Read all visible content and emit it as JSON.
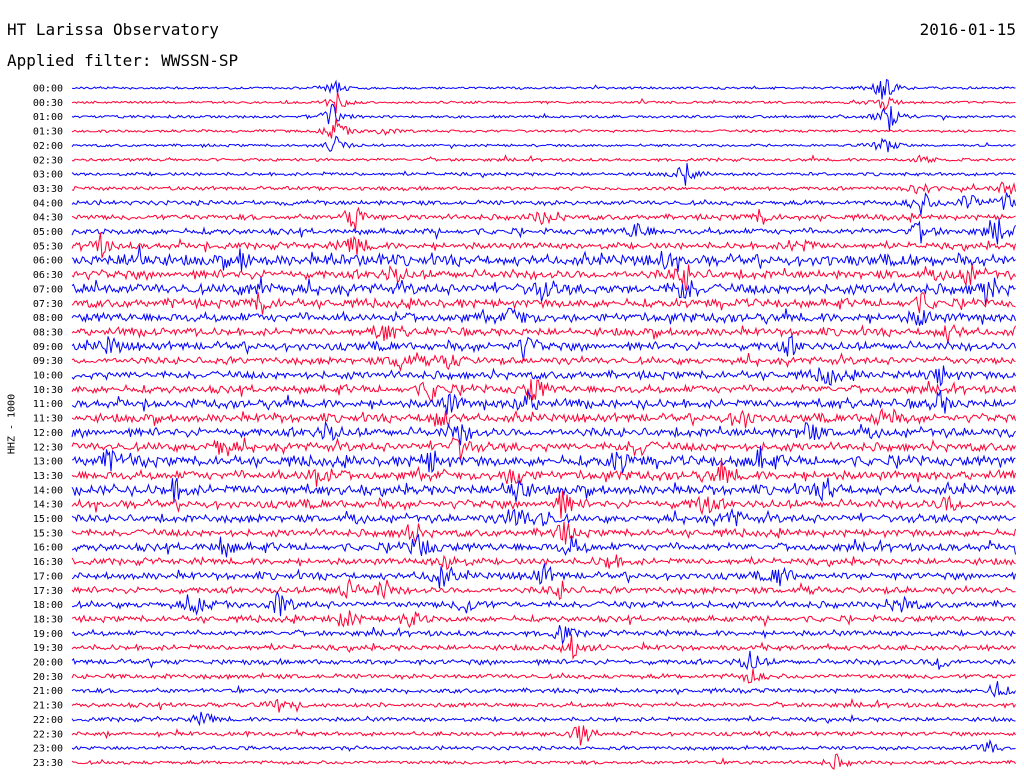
{
  "header": {
    "title": "HT Larissa Observatory",
    "date": "2016-01-15",
    "filter_label": "Applied filter: WWSSN-SP"
  },
  "chart_data": {
    "type": "line",
    "title": "HT Larissa Observatory",
    "subtitle": "Applied filter: WWSSN-SP",
    "ylabel": "HHZ - 1000",
    "xlabel": "",
    "grid": false,
    "colors": [
      "#0000ff",
      "#ff0033"
    ],
    "rows": [
      {
        "label": "00:00",
        "activity": 0.1,
        "events": [
          [
            0.28,
            0.6
          ],
          [
            0.86,
            1.0
          ]
        ]
      },
      {
        "label": "00:30",
        "activity": 0.1,
        "events": [
          [
            0.28,
            0.7
          ],
          [
            0.86,
            0.6
          ]
        ]
      },
      {
        "label": "01:00",
        "activity": 0.12,
        "events": [
          [
            0.275,
            1.0
          ],
          [
            0.865,
            1.0
          ]
        ]
      },
      {
        "label": "01:30",
        "activity": 0.12,
        "events": [
          [
            0.28,
            0.8
          ],
          [
            0.33,
            0.3
          ]
        ]
      },
      {
        "label": "02:00",
        "activity": 0.12,
        "events": [
          [
            0.28,
            0.7
          ],
          [
            0.86,
            0.7
          ]
        ]
      },
      {
        "label": "02:30",
        "activity": 0.15,
        "events": [
          [
            0.9,
            0.3
          ]
        ]
      },
      {
        "label": "03:00",
        "activity": 0.18,
        "events": [
          [
            0.65,
            0.8
          ]
        ]
      },
      {
        "label": "03:30",
        "activity": 0.22,
        "events": [
          [
            0.9,
            0.5
          ],
          [
            0.99,
            0.6
          ]
        ]
      },
      {
        "label": "04:00",
        "activity": 0.3,
        "events": [
          [
            0.9,
            0.9
          ],
          [
            0.95,
            0.8
          ],
          [
            0.99,
            0.7
          ]
        ]
      },
      {
        "label": "04:30",
        "activity": 0.35,
        "events": [
          [
            0.3,
            0.8
          ],
          [
            0.5,
            0.6
          ],
          [
            0.73,
            0.5
          ]
        ]
      },
      {
        "label": "05:00",
        "activity": 0.4,
        "events": [
          [
            0.6,
            0.7
          ],
          [
            0.9,
            0.8
          ],
          [
            0.98,
            0.8
          ]
        ]
      },
      {
        "label": "05:30",
        "activity": 0.45,
        "events": [
          [
            0.03,
            0.7
          ],
          [
            0.3,
            0.8
          ],
          [
            0.77,
            0.7
          ]
        ]
      },
      {
        "label": "06:00",
        "activity": 0.8,
        "events": [
          [
            0.07,
            0.8
          ],
          [
            0.18,
            0.6
          ],
          [
            0.63,
            0.5
          ]
        ]
      },
      {
        "label": "06:30",
        "activity": 0.65,
        "events": [
          [
            0.34,
            0.6
          ],
          [
            0.65,
            0.8
          ],
          [
            0.95,
            0.7
          ]
        ]
      },
      {
        "label": "07:00",
        "activity": 0.75,
        "events": [
          [
            0.2,
            0.7
          ],
          [
            0.5,
            0.7
          ],
          [
            0.65,
            0.9
          ],
          [
            0.97,
            0.8
          ]
        ]
      },
      {
        "label": "07:30",
        "activity": 0.6,
        "events": [
          [
            0.2,
            0.7
          ],
          [
            0.9,
            0.6
          ]
        ]
      },
      {
        "label": "08:00",
        "activity": 0.65,
        "events": [
          [
            0.47,
            0.7
          ],
          [
            0.9,
            0.6
          ]
        ]
      },
      {
        "label": "08:30",
        "activity": 0.55,
        "events": [
          [
            0.33,
            0.6
          ],
          [
            0.93,
            0.6
          ]
        ]
      },
      {
        "label": "09:00",
        "activity": 0.6,
        "events": [
          [
            0.04,
            0.6
          ],
          [
            0.48,
            0.8
          ],
          [
            0.76,
            0.6
          ]
        ]
      },
      {
        "label": "09:30",
        "activity": 0.5,
        "events": [
          [
            0.35,
            0.7
          ],
          [
            0.4,
            0.6
          ]
        ]
      },
      {
        "label": "10:00",
        "activity": 0.55,
        "events": [
          [
            0.8,
            0.7
          ],
          [
            0.92,
            0.6
          ]
        ]
      },
      {
        "label": "10:30",
        "activity": 0.55,
        "events": [
          [
            0.38,
            0.7
          ],
          [
            0.49,
            0.9
          ]
        ]
      },
      {
        "label": "11:00",
        "activity": 0.6,
        "events": [
          [
            0.4,
            0.7
          ],
          [
            0.48,
            0.8
          ],
          [
            0.92,
            0.7
          ]
        ]
      },
      {
        "label": "11:30",
        "activity": 0.6,
        "events": [
          [
            0.39,
            0.8
          ],
          [
            0.71,
            0.8
          ],
          [
            0.86,
            0.7
          ]
        ]
      },
      {
        "label": "12:00",
        "activity": 0.65,
        "events": [
          [
            0.27,
            0.7
          ],
          [
            0.41,
            0.8
          ],
          [
            0.78,
            0.7
          ]
        ]
      },
      {
        "label": "12:30",
        "activity": 0.6,
        "events": [
          [
            0.16,
            0.7
          ],
          [
            0.41,
            0.8
          ],
          [
            0.6,
            0.7
          ]
        ]
      },
      {
        "label": "13:00",
        "activity": 0.75,
        "events": [
          [
            0.04,
            0.6
          ],
          [
            0.38,
            0.7
          ],
          [
            0.58,
            0.7
          ],
          [
            0.73,
            0.7
          ]
        ]
      },
      {
        "label": "13:30",
        "activity": 0.65,
        "events": [
          [
            0.26,
            0.7
          ],
          [
            0.47,
            0.9
          ],
          [
            0.69,
            0.7
          ]
        ]
      },
      {
        "label": "14:00",
        "activity": 0.7,
        "events": [
          [
            0.11,
            0.7
          ],
          [
            0.47,
            1.0
          ],
          [
            0.8,
            0.7
          ]
        ]
      },
      {
        "label": "14:30",
        "activity": 0.6,
        "events": [
          [
            0.52,
            0.9
          ],
          [
            0.67,
            0.8
          ],
          [
            0.93,
            0.6
          ]
        ]
      },
      {
        "label": "15:00",
        "activity": 0.55,
        "events": [
          [
            0.47,
            0.9
          ],
          [
            0.5,
            0.7
          ],
          [
            0.7,
            0.6
          ]
        ]
      },
      {
        "label": "15:30",
        "activity": 0.5,
        "events": [
          [
            0.36,
            0.7
          ],
          [
            0.52,
            0.8
          ]
        ]
      },
      {
        "label": "16:00",
        "activity": 0.55,
        "events": [
          [
            0.16,
            0.7
          ],
          [
            0.37,
            0.9
          ],
          [
            0.53,
            0.7
          ]
        ]
      },
      {
        "label": "16:30",
        "activity": 0.45,
        "events": [
          [
            0.4,
            0.7
          ],
          [
            0.57,
            0.6
          ]
        ]
      },
      {
        "label": "17:00",
        "activity": 0.5,
        "events": [
          [
            0.39,
            0.8
          ],
          [
            0.5,
            0.7
          ],
          [
            0.75,
            0.8
          ]
        ]
      },
      {
        "label": "17:30",
        "activity": 0.45,
        "events": [
          [
            0.29,
            0.8
          ],
          [
            0.33,
            0.7
          ],
          [
            0.52,
            0.6
          ]
        ]
      },
      {
        "label": "18:00",
        "activity": 0.45,
        "events": [
          [
            0.13,
            0.6
          ],
          [
            0.22,
            0.8
          ],
          [
            0.42,
            0.7
          ],
          [
            0.88,
            0.6
          ]
        ]
      },
      {
        "label": "18:30",
        "activity": 0.4,
        "events": [
          [
            0.29,
            0.7
          ],
          [
            0.36,
            0.6
          ]
        ]
      },
      {
        "label": "19:00",
        "activity": 0.35,
        "events": [
          [
            0.52,
            0.6
          ]
        ]
      },
      {
        "label": "19:30",
        "activity": 0.35,
        "events": [
          [
            0.53,
            0.8
          ]
        ]
      },
      {
        "label": "20:00",
        "activity": 0.35,
        "events": [
          [
            0.72,
            0.8
          ],
          [
            0.92,
            0.5
          ]
        ]
      },
      {
        "label": "20:30",
        "activity": 0.3,
        "events": [
          [
            0.72,
            0.5
          ]
        ]
      },
      {
        "label": "21:00",
        "activity": 0.28,
        "events": [
          [
            0.98,
            0.5
          ]
        ]
      },
      {
        "label": "21:30",
        "activity": 0.28,
        "events": [
          [
            0.22,
            0.5
          ]
        ]
      },
      {
        "label": "22:00",
        "activity": 0.25,
        "events": [
          [
            0.14,
            0.5
          ]
        ]
      },
      {
        "label": "22:30",
        "activity": 0.25,
        "events": [
          [
            0.54,
            0.9
          ]
        ]
      },
      {
        "label": "23:00",
        "activity": 0.22,
        "events": [
          [
            0.97,
            0.6
          ]
        ]
      },
      {
        "label": "23:30",
        "activity": 0.2,
        "events": [
          [
            0.81,
            0.5
          ]
        ]
      }
    ]
  }
}
